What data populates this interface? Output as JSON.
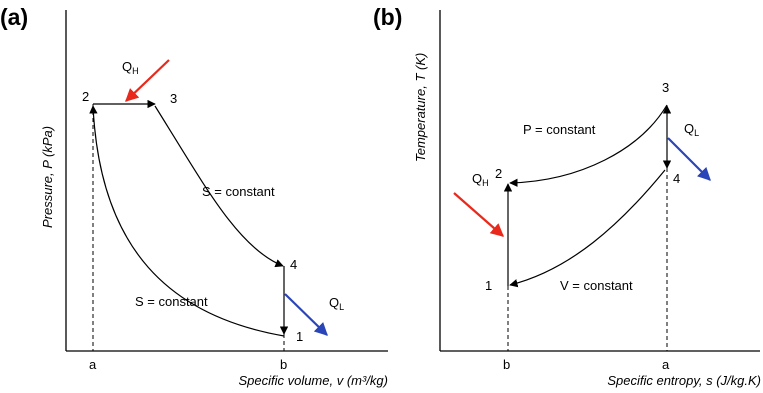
{
  "panel_a": {
    "letter": "(a)",
    "y_axis": "Pressure, P (kPa)",
    "x_axis": "Specific volume, v (m³/kg)",
    "points": [
      "1",
      "2",
      "3",
      "4"
    ],
    "ticks": [
      "a",
      "b"
    ],
    "q_h": {
      "main": "Q",
      "sub": "H"
    },
    "q_l": {
      "main": "Q",
      "sub": "L"
    },
    "label_upper": "S = constant",
    "label_lower": "S = constant"
  },
  "panel_b": {
    "letter": "(b)",
    "y_axis": "Temperature, T (K)",
    "x_axis": "Specific entropy, s (J/kg.K)",
    "points": [
      "1",
      "2",
      "3",
      "4"
    ],
    "ticks": [
      "b",
      "a"
    ],
    "q_h": {
      "main": "Q",
      "sub": "H"
    },
    "q_l": {
      "main": "Q",
      "sub": "L"
    },
    "label_upper": "P = constant",
    "label_lower": "V = constant"
  },
  "colors": {
    "heat_in": "#e8291c",
    "heat_out": "#2a45b8",
    "line": "#000000"
  }
}
